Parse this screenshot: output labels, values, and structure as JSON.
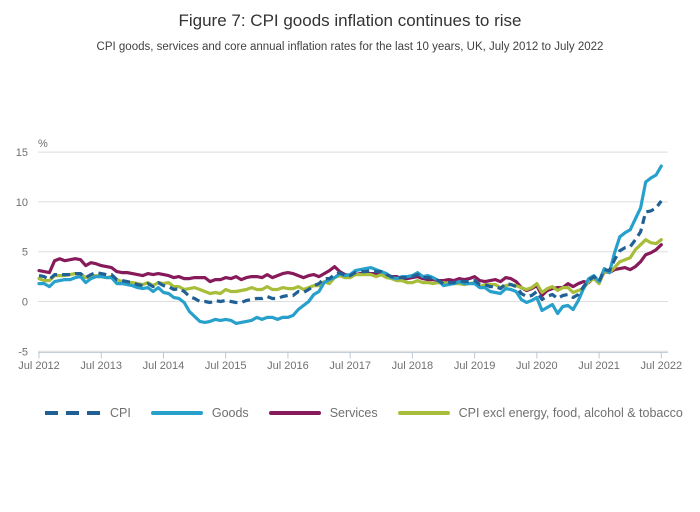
{
  "figure": {
    "title": "Figure 7: CPI goods inflation continues to rise",
    "subtitle": "CPI goods, services and core annual inflation rates for the last 10 years, UK, July 2012 to July 2022"
  },
  "colors": {
    "gridline": "#DEDEDE",
    "axis_line": "#BCC8D4",
    "tick_label": "#707071",
    "title_text": "#333333",
    "subtitle_text": "#414042"
  },
  "chart_data": {
    "type": "line",
    "title": "Figure 7: CPI goods inflation continues to rise",
    "subtitle": "CPI goods, services and core annual inflation rates for the last 10 years, UK, July 2012 to July 2022",
    "unit_label": "%",
    "frequency": "monthly",
    "x_start": "Jul 2012",
    "x_end": "Jul 2022",
    "x_tick_labels": [
      "Jul 2012",
      "Jul 2013",
      "Jul 2014",
      "Jul 2015",
      "Jul 2016",
      "Jul 2017",
      "Jul 2018",
      "Jul 2019",
      "Jul 2020",
      "Jul 2021",
      "Jul 2022"
    ],
    "yticks": [
      -5,
      0,
      5,
      10,
      15
    ],
    "ylim": [
      -5,
      15
    ],
    "grid": "horizontal",
    "legend_position": "bottom",
    "series": [
      {
        "name": "CPI",
        "color": "#206095",
        "style": "dashed",
        "values": [
          2.6,
          2.5,
          2.2,
          2.7,
          2.7,
          2.7,
          2.7,
          2.8,
          2.8,
          2.4,
          2.7,
          2.9,
          2.8,
          2.7,
          2.7,
          2.2,
          2.1,
          2.0,
          1.9,
          1.7,
          1.6,
          1.8,
          1.5,
          1.9,
          1.6,
          1.5,
          1.2,
          1.3,
          1.0,
          0.5,
          0.3,
          0.0,
          0.0,
          -0.1,
          0.1,
          0.0,
          0.1,
          0.0,
          -0.1,
          -0.1,
          0.1,
          0.2,
          0.3,
          0.3,
          0.5,
          0.3,
          0.3,
          0.5,
          0.6,
          0.6,
          1.0,
          0.9,
          1.2,
          1.6,
          1.8,
          2.3,
          2.3,
          2.7,
          2.9,
          2.6,
          2.6,
          2.9,
          3.0,
          3.0,
          3.1,
          3.0,
          3.0,
          2.7,
          2.5,
          2.4,
          2.4,
          2.4,
          2.5,
          2.7,
          2.4,
          2.4,
          2.3,
          2.1,
          1.8,
          1.9,
          1.9,
          2.1,
          2.0,
          2.0,
          2.1,
          1.7,
          1.7,
          1.5,
          1.5,
          1.3,
          1.8,
          1.7,
          1.5,
          0.8,
          0.5,
          0.6,
          1.0,
          0.2,
          0.5,
          0.7,
          0.3,
          0.6,
          0.7,
          0.4,
          0.7,
          1.5,
          2.1,
          2.5,
          2.0,
          3.2,
          3.1,
          4.2,
          5.1,
          5.4,
          5.5,
          6.2,
          7.0,
          9.0,
          9.1,
          9.4,
          10.1
        ]
      },
      {
        "name": "Goods",
        "color": "#27A0CC",
        "style": "solid",
        "values": [
          1.8,
          1.8,
          1.5,
          2.0,
          2.1,
          2.2,
          2.2,
          2.4,
          2.5,
          1.9,
          2.3,
          2.5,
          2.5,
          2.4,
          2.4,
          1.8,
          1.8,
          1.7,
          1.6,
          1.4,
          1.3,
          1.4,
          1.0,
          1.4,
          0.9,
          0.8,
          0.4,
          0.3,
          -0.1,
          -1.0,
          -1.5,
          -2.0,
          -2.1,
          -2.0,
          -1.8,
          -1.9,
          -1.8,
          -1.9,
          -2.2,
          -2.1,
          -2.0,
          -1.9,
          -1.6,
          -1.8,
          -1.6,
          -1.6,
          -1.8,
          -1.6,
          -1.6,
          -1.4,
          -0.8,
          -0.4,
          0.0,
          0.7,
          1.0,
          1.9,
          2.2,
          2.4,
          2.8,
          2.6,
          2.7,
          3.1,
          3.2,
          3.3,
          3.4,
          3.2,
          3.0,
          2.8,
          2.4,
          2.3,
          2.5,
          2.5,
          2.6,
          2.9,
          2.5,
          2.6,
          2.4,
          2.1,
          1.6,
          1.7,
          1.8,
          2.0,
          1.8,
          1.8,
          1.8,
          1.4,
          1.4,
          1.0,
          0.9,
          0.8,
          1.3,
          1.2,
          1.0,
          0.2,
          -0.1,
          0.1,
          0.4,
          -0.9,
          -0.6,
          -0.3,
          -1.2,
          -0.5,
          -0.4,
          -0.8,
          0.1,
          1.3,
          2.3,
          2.6,
          2.0,
          3.3,
          2.9,
          4.9,
          6.5,
          6.9,
          7.2,
          8.3,
          9.4,
          12.0,
          12.4,
          12.7,
          13.6
        ]
      },
      {
        "name": "Services",
        "color": "#871A5B",
        "style": "solid",
        "values": [
          3.1,
          3.0,
          2.9,
          4.1,
          4.3,
          4.1,
          4.2,
          4.3,
          4.2,
          3.6,
          3.9,
          3.8,
          3.6,
          3.5,
          3.4,
          3.0,
          2.9,
          2.9,
          2.8,
          2.7,
          2.6,
          2.8,
          2.7,
          2.8,
          2.7,
          2.6,
          2.4,
          2.5,
          2.3,
          2.3,
          2.4,
          2.4,
          2.4,
          2.0,
          2.2,
          2.2,
          2.4,
          2.3,
          2.5,
          2.2,
          2.4,
          2.5,
          2.5,
          2.4,
          2.7,
          2.4,
          2.6,
          2.8,
          2.9,
          2.8,
          2.6,
          2.4,
          2.6,
          2.7,
          2.5,
          2.8,
          3.1,
          3.5,
          3.0,
          2.7,
          2.6,
          2.7,
          2.8,
          2.8,
          2.8,
          2.8,
          2.9,
          2.6,
          2.5,
          2.5,
          2.3,
          2.3,
          2.4,
          2.5,
          2.3,
          2.2,
          2.2,
          2.1,
          2.1,
          2.2,
          2.1,
          2.3,
          2.2,
          2.3,
          2.5,
          2.1,
          2.0,
          2.1,
          2.2,
          2.0,
          2.4,
          2.3,
          2.0,
          1.4,
          1.1,
          1.3,
          1.6,
          0.6,
          1.1,
          1.3,
          1.4,
          1.4,
          1.8,
          1.5,
          1.8,
          2.0,
          1.9,
          2.4,
          1.9,
          3.0,
          2.9,
          3.2,
          3.3,
          3.4,
          3.2,
          3.5,
          4.0,
          4.7,
          4.9,
          5.2,
          5.7
        ]
      },
      {
        "name": "CPI excl energy, food, alcohol & tobacco",
        "color": "#A8BD3A",
        "style": "solid",
        "values": [
          2.3,
          2.1,
          2.1,
          2.6,
          2.6,
          2.6,
          2.7,
          2.8,
          2.8,
          2.4,
          2.5,
          2.6,
          2.5,
          2.4,
          2.5,
          2.2,
          2.0,
          1.9,
          1.9,
          1.8,
          1.7,
          1.9,
          1.6,
          1.9,
          1.8,
          1.9,
          1.5,
          1.5,
          1.2,
          1.3,
          1.4,
          1.2,
          1.0,
          0.8,
          0.9,
          0.8,
          1.2,
          1.0,
          1.0,
          1.1,
          1.2,
          1.4,
          1.2,
          1.2,
          1.5,
          1.2,
          1.2,
          1.4,
          1.3,
          1.3,
          1.5,
          1.2,
          1.4,
          1.6,
          1.6,
          2.0,
          1.8,
          2.4,
          2.6,
          2.4,
          2.4,
          2.7,
          2.7,
          2.7,
          2.7,
          2.5,
          2.7,
          2.4,
          2.3,
          2.1,
          2.1,
          1.9,
          1.9,
          2.1,
          1.9,
          1.9,
          1.8,
          1.9,
          1.9,
          1.8,
          1.8,
          1.8,
          1.7,
          1.8,
          1.9,
          1.5,
          1.7,
          1.7,
          1.7,
          1.4,
          1.6,
          1.7,
          1.6,
          1.4,
          1.2,
          1.4,
          1.8,
          0.9,
          1.3,
          1.5,
          1.1,
          1.4,
          1.4,
          0.9,
          1.1,
          1.3,
          2.0,
          2.3,
          1.8,
          3.1,
          2.9,
          3.4,
          4.0,
          4.2,
          4.4,
          5.2,
          5.7,
          6.2,
          5.9,
          5.8,
          6.2
        ]
      }
    ]
  }
}
